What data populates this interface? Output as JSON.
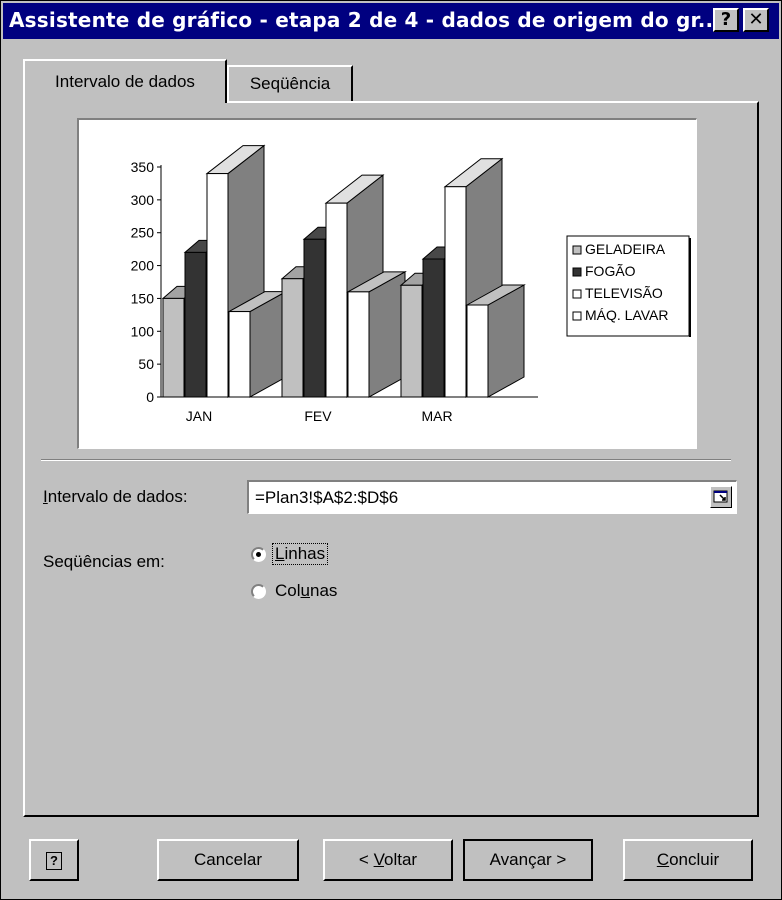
{
  "window": {
    "title": "Assistente de gráfico - etapa 2 de 4 - dados de origem do gr...",
    "help_glyph": "?",
    "close_glyph": "✕"
  },
  "tabs": [
    {
      "label": "Intervalo de dados",
      "active": true
    },
    {
      "label": "Seqüência",
      "active": false
    }
  ],
  "chart_data": {
    "type": "bar",
    "variant": "3d-clustered-column",
    "categories": [
      "JAN",
      "FEV",
      "MAR"
    ],
    "series": [
      {
        "name": "GELADEIRA",
        "color": "#c0c0c0",
        "values": [
          150,
          180,
          170
        ]
      },
      {
        "name": "FOGÃO",
        "color": "#333333",
        "values": [
          220,
          240,
          210
        ]
      },
      {
        "name": "TELEVISÃO",
        "color": "#ffffff",
        "values": [
          340,
          295,
          320
        ]
      },
      {
        "name": "MÁQ. LAVAR",
        "color": "#ffffff",
        "values": [
          130,
          160,
          140
        ]
      }
    ],
    "yticks": [
      "0",
      "50",
      "100",
      "150",
      "200",
      "250",
      "300",
      "350"
    ],
    "ylim": [
      0,
      350
    ],
    "legend_position": "right"
  },
  "form": {
    "range_label": "Intervalo de dados:",
    "range_label_accesskey": "I",
    "range_label_rest": "ntervalo de dados:",
    "range_value": "=Plan3!$A$2:$D$6",
    "series_in_label": "Seqüências em:",
    "options": [
      {
        "label": "Linhas",
        "pre": "",
        "key": "L",
        "post": "inhas",
        "selected": true
      },
      {
        "label": "Colunas",
        "pre": "Col",
        "key": "u",
        "post": "nas",
        "selected": false
      }
    ]
  },
  "buttons": {
    "help_glyph": "?",
    "cancel": "Cancelar",
    "back_pre": "< ",
    "back_key": "V",
    "back_post": "oltar",
    "next": "Avançar >",
    "finish_key": "C",
    "finish_post": "oncluir"
  }
}
